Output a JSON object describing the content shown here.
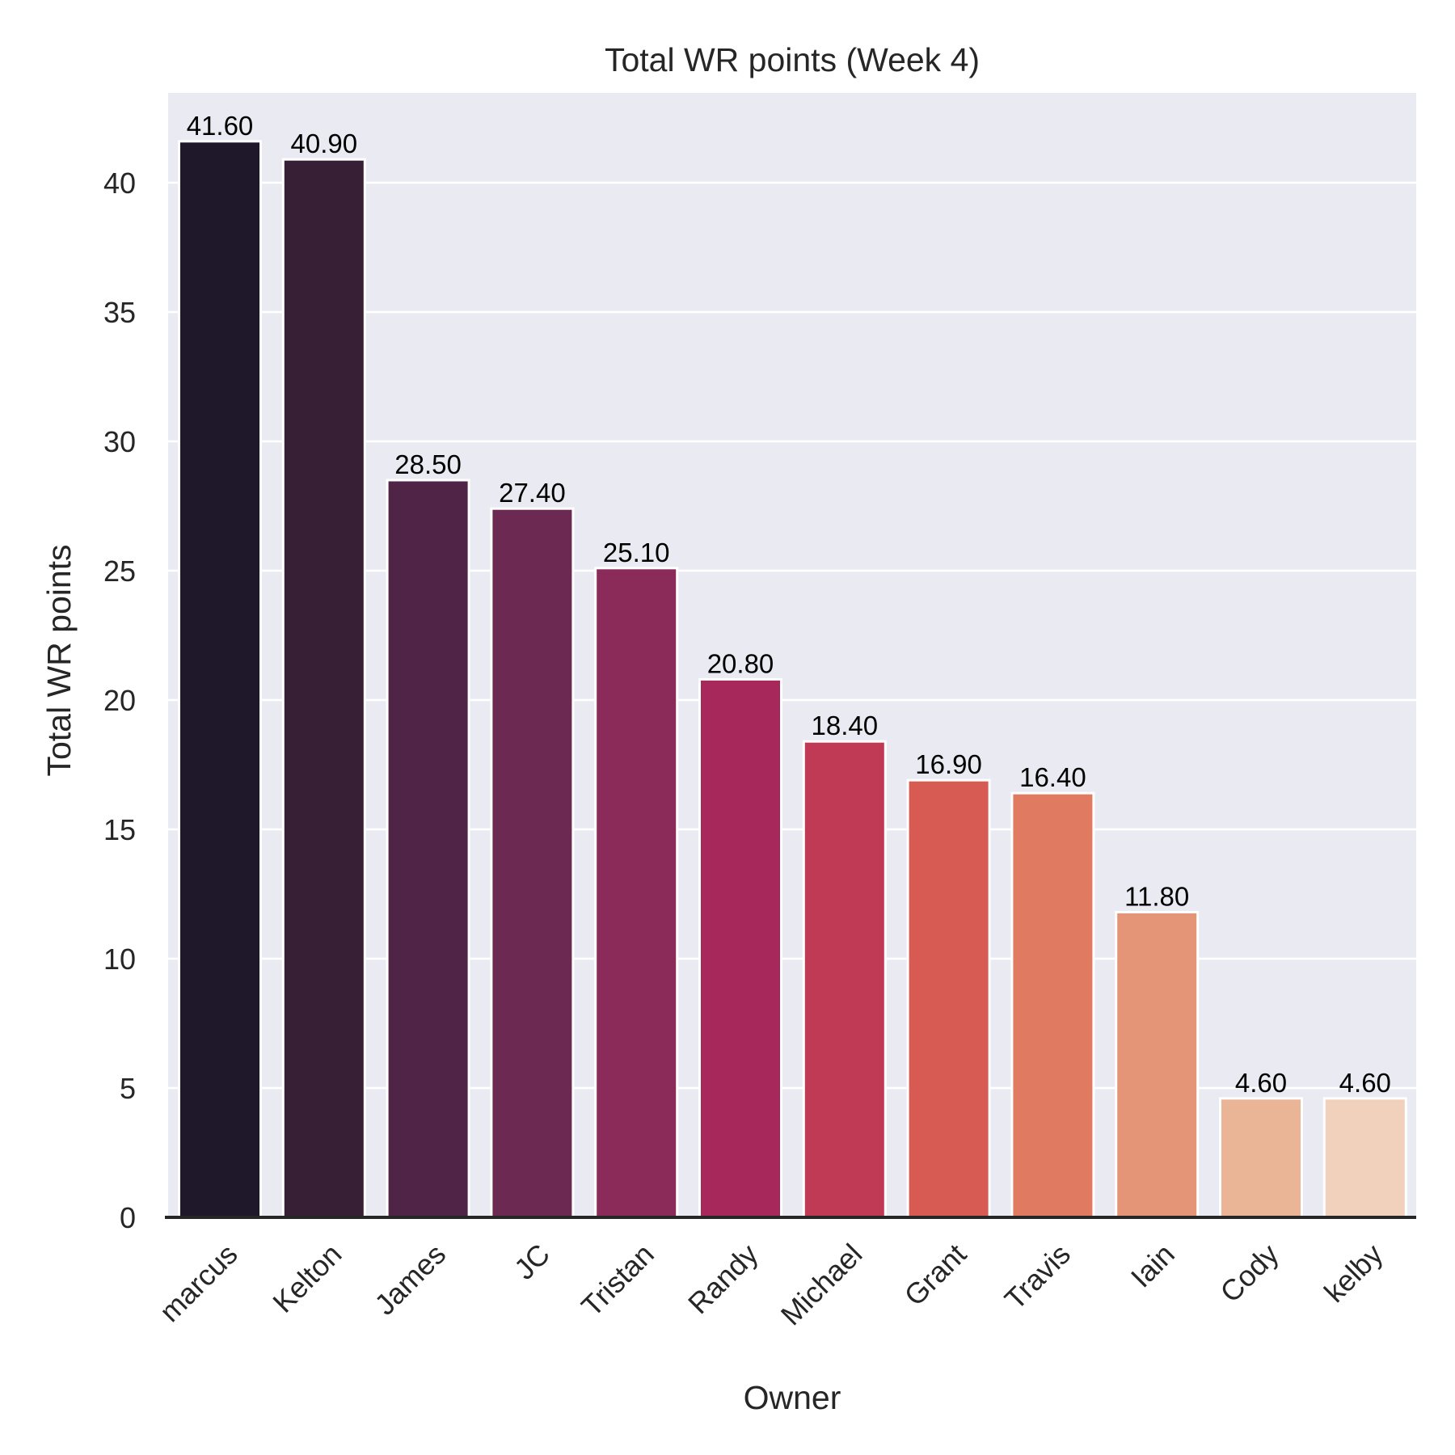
{
  "chart_data": {
    "type": "bar",
    "title": "Total WR points (Week 4)",
    "xlabel": "Owner",
    "ylabel": "Total WR points",
    "categories": [
      "marcus",
      "Kelton",
      "James",
      "JC",
      "Tristan",
      "Randy",
      "Michael",
      "Grant",
      "Travis",
      "Iain",
      "Cody",
      "kelby"
    ],
    "values": [
      41.6,
      40.9,
      28.5,
      27.4,
      25.1,
      20.8,
      18.4,
      16.9,
      16.4,
      11.8,
      4.6,
      4.6
    ],
    "value_labels": [
      "41.60",
      "40.90",
      "28.50",
      "27.40",
      "25.10",
      "20.80",
      "18.40",
      "16.90",
      "16.40",
      "11.80",
      "4.60",
      "4.60"
    ],
    "yticks": [
      "0",
      "5",
      "10",
      "15",
      "20",
      "25",
      "30",
      "35",
      "40"
    ],
    "ylim": [
      0,
      43.7
    ],
    "grid": true,
    "colors": [
      "#1f172a",
      "#372036",
      "#502447",
      "#6c2a52",
      "#8a2b5a",
      "#a7295b",
      "#c03a55",
      "#d75b52",
      "#e07a60",
      "#e59577",
      "#eab496",
      "#f1d1bc"
    ],
    "background_color": "#eaeaf2",
    "grid_color": "#ffffff"
  }
}
